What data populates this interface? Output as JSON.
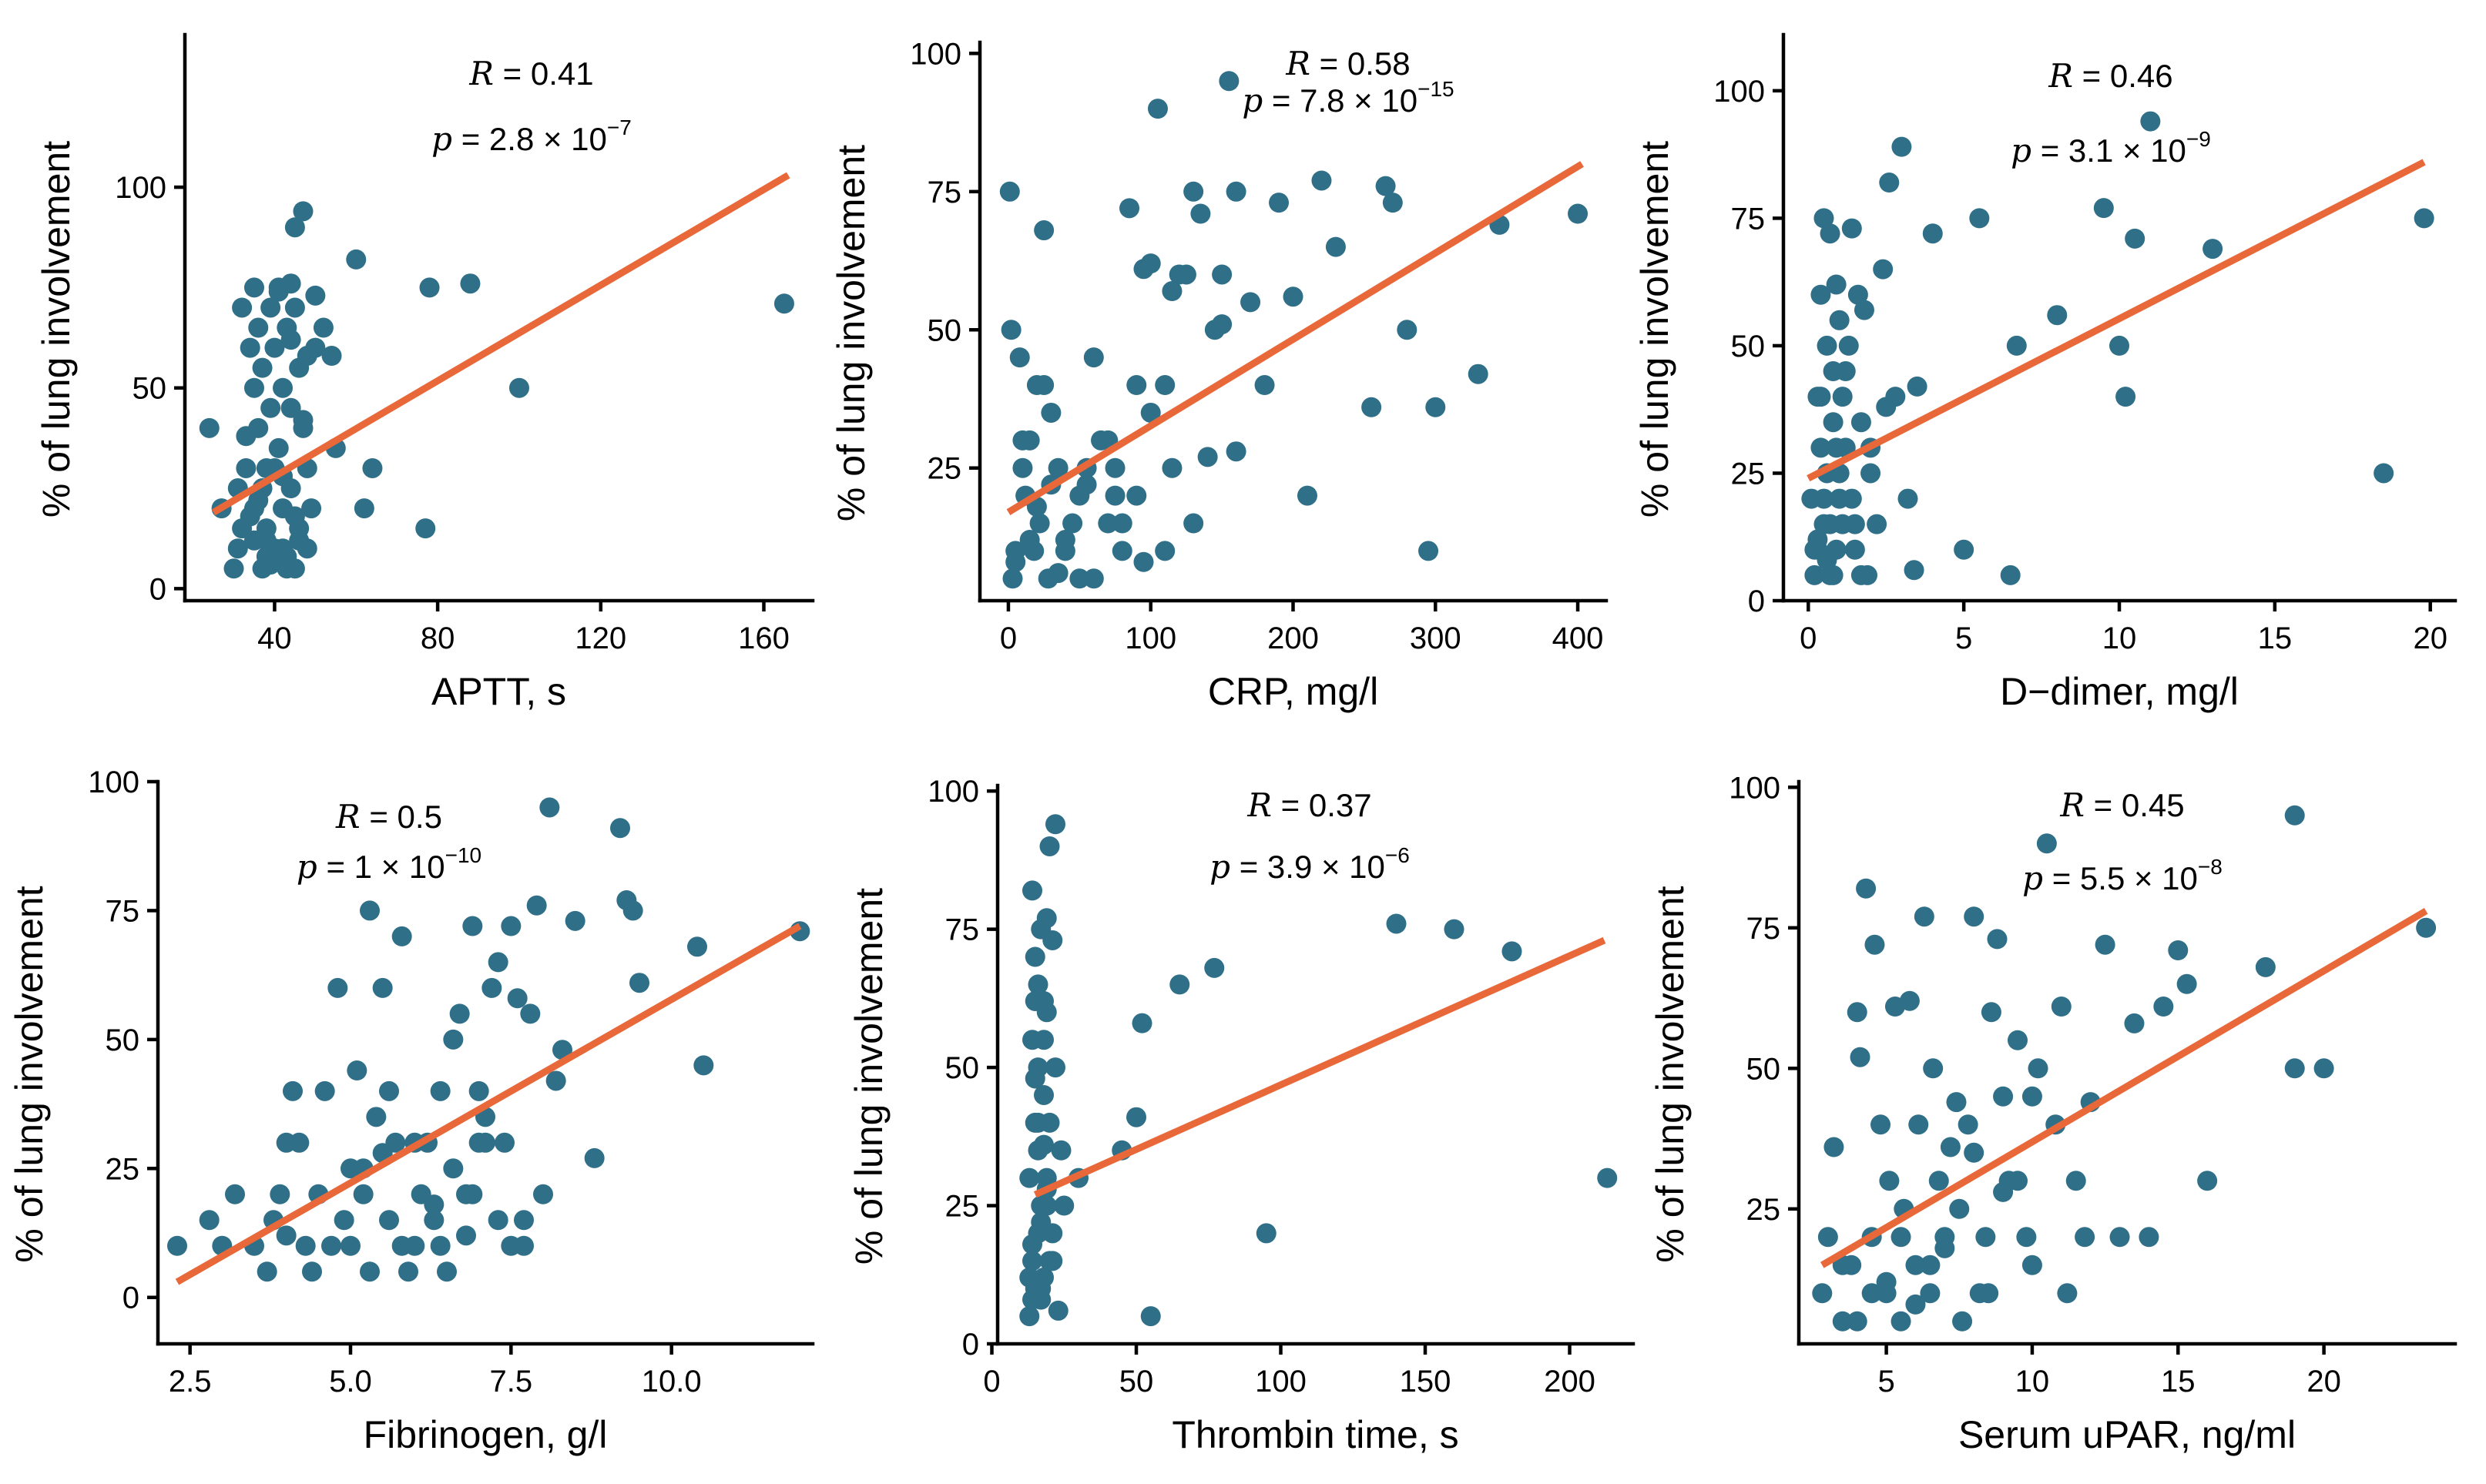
{
  "colors": {
    "point": "#2f6f88",
    "trend": "#e8683a",
    "axis": "#000000"
  },
  "chart_data": [
    {
      "type": "scatter",
      "xlabel": "APTT, s",
      "ylabel": "% of lung involvement",
      "xlim": [
        18,
        172
      ],
      "ylim": [
        -3,
        138
      ],
      "xticks": [
        40,
        80,
        120,
        160
      ],
      "yticks": [
        0,
        50,
        100
      ],
      "stat_r": {
        "symbol": "R",
        "text": " = 0.41"
      },
      "stat_p": {
        "symbol": "p",
        "text": " = 2.8 × 10",
        "exp": "−7"
      },
      "fit": {
        "x": [
          25,
          166
        ],
        "y": [
          19,
          103
        ]
      },
      "points": {
        "x": [
          24,
          27,
          30,
          31,
          32,
          33,
          34,
          35,
          35,
          36,
          36,
          37,
          37,
          38,
          38,
          39,
          39,
          40,
          40,
          41,
          41,
          42,
          42,
          43,
          43,
          44,
          44,
          45,
          45,
          46,
          46,
          47,
          47,
          48,
          48,
          49,
          50,
          52,
          55,
          60,
          62,
          64,
          77,
          78,
          88,
          100,
          165,
          32,
          35,
          38,
          42,
          45,
          50,
          54,
          36,
          41,
          44,
          47,
          33,
          39,
          46,
          43,
          40,
          37,
          34,
          31,
          44,
          48,
          42,
          45,
          38,
          35
        ],
        "y": [
          40,
          20,
          5,
          10,
          15,
          30,
          60,
          75,
          50,
          40,
          65,
          25,
          5,
          15,
          30,
          45,
          70,
          10,
          60,
          35,
          75,
          20,
          50,
          5,
          65,
          25,
          45,
          90,
          70,
          15,
          55,
          40,
          94,
          10,
          30,
          20,
          73,
          65,
          35,
          82,
          20,
          30,
          15,
          75,
          76,
          50,
          71,
          70,
          12,
          8,
          28,
          18,
          60,
          58,
          22,
          74,
          62,
          42,
          38,
          6,
          12,
          8,
          30,
          55,
          18,
          25,
          76,
          58,
          10,
          5,
          12,
          20
        ]
      }
    },
    {
      "type": "scatter",
      "xlabel": "CRP, mg/l",
      "ylabel": "% of lung involvement",
      "xlim": [
        -20,
        420
      ],
      "ylim": [
        1,
        102
      ],
      "xticks": [
        0,
        100,
        200,
        300,
        400
      ],
      "yticks": [
        25,
        50,
        75,
        100
      ],
      "stat_r": {
        "symbol": "R",
        "text": " = 0.58"
      },
      "stat_p": {
        "symbol": "p",
        "text": " = 7.8 × 10",
        "exp": "−15"
      },
      "fit": {
        "x": [
          0,
          403
        ],
        "y": [
          17,
          80
        ]
      },
      "points": {
        "x": [
          1,
          2,
          3,
          5,
          8,
          10,
          12,
          15,
          18,
          20,
          22,
          25,
          28,
          30,
          35,
          40,
          45,
          50,
          55,
          60,
          65,
          70,
          75,
          80,
          85,
          90,
          95,
          100,
          105,
          110,
          115,
          120,
          130,
          135,
          140,
          145,
          150,
          155,
          160,
          170,
          180,
          190,
          200,
          210,
          220,
          230,
          255,
          265,
          270,
          280,
          295,
          300,
          330,
          345,
          400,
          10,
          25,
          40,
          60,
          80,
          95,
          115,
          150,
          5,
          15,
          30,
          50,
          70,
          90,
          110,
          130,
          160,
          20,
          35,
          55,
          75,
          100,
          125
        ],
        "y": [
          75,
          50,
          5,
          10,
          45,
          25,
          20,
          30,
          10,
          40,
          15,
          68,
          5,
          35,
          25,
          10,
          15,
          20,
          25,
          45,
          30,
          15,
          20,
          10,
          72,
          40,
          61,
          62,
          90,
          40,
          57,
          60,
          75,
          71,
          27,
          50,
          60,
          95,
          75,
          55,
          40,
          73,
          56,
          20,
          77,
          65,
          36,
          76,
          73,
          50,
          10,
          36,
          42,
          69,
          71,
          30,
          40,
          12,
          5,
          15,
          8,
          25,
          51,
          8,
          12,
          22,
          5,
          30,
          20,
          10,
          15,
          28,
          18,
          6,
          22,
          25,
          35,
          60
        ]
      }
    },
    {
      "type": "scatter",
      "xlabel": "D−dimer, mg/l",
      "ylabel": "% of lung involvement",
      "xlim": [
        -0.8,
        20.8
      ],
      "ylim": [
        0,
        111
      ],
      "xticks": [
        0,
        5,
        10,
        15,
        20
      ],
      "yticks": [
        0,
        25,
        50,
        75,
        100
      ],
      "stat_r": {
        "symbol": "R",
        "text": " = 0.46"
      },
      "stat_p": {
        "symbol": "p",
        "text": " = 3.1 × 10",
        "exp": "−9"
      },
      "fit": {
        "x": [
          0,
          19.8
        ],
        "y": [
          24,
          86
        ]
      },
      "points": {
        "x": [
          0.1,
          0.2,
          0.3,
          0.3,
          0.4,
          0.4,
          0.5,
          0.5,
          0.6,
          0.6,
          0.7,
          0.7,
          0.8,
          0.8,
          0.9,
          0.9,
          1.0,
          1.0,
          1.1,
          1.2,
          1.3,
          1.4,
          1.5,
          1.6,
          1.7,
          1.8,
          1.9,
          2.0,
          2.2,
          2.4,
          2.6,
          2.8,
          3.0,
          3.2,
          3.4,
          3.5,
          4.0,
          5.0,
          5.5,
          6.5,
          6.7,
          8.0,
          9.5,
          10.0,
          10.2,
          10.5,
          11.0,
          13.0,
          18.5,
          19.8,
          0.2,
          0.5,
          0.8,
          1.2,
          1.5,
          2.0,
          0.3,
          0.6,
          0.9,
          1.1,
          1.4,
          1.7,
          0.4,
          0.7,
          1.0,
          2.5
        ],
        "y": [
          20,
          5,
          40,
          10,
          30,
          60,
          15,
          75,
          50,
          25,
          5,
          72,
          35,
          45,
          10,
          62,
          20,
          55,
          40,
          30,
          50,
          73,
          15,
          60,
          35,
          57,
          5,
          25,
          15,
          65,
          82,
          40,
          89,
          20,
          6,
          42,
          72,
          10,
          75,
          5,
          50,
          56,
          77,
          50,
          40,
          71,
          94,
          69,
          25,
          75,
          10,
          20,
          5,
          45,
          10,
          30,
          12,
          8,
          30,
          15,
          20,
          5,
          40,
          15,
          25,
          38
        ]
      }
    },
    {
      "type": "scatter",
      "xlabel": "Fibrinogen, g/l",
      "ylabel": "% of lung involvement",
      "xlim": [
        2.0,
        12.2
      ],
      "ylim": [
        -9,
        100
      ],
      "xticks": [
        2.5,
        5.0,
        7.5,
        10.0
      ],
      "yticks": [
        0,
        25,
        50,
        75,
        100
      ],
      "stat_r": {
        "symbol": "R",
        "text": " = 0.5"
      },
      "stat_p": {
        "symbol": "p",
        "text": " = 1 × 10",
        "exp": "−10"
      },
      "fit": {
        "x": [
          2.3,
          12.0
        ],
        "y": [
          3,
          72
        ]
      },
      "points": {
        "x": [
          2.3,
          2.8,
          3.0,
          3.2,
          3.5,
          3.7,
          3.8,
          4.0,
          4.1,
          4.3,
          4.5,
          4.6,
          4.8,
          4.9,
          5.0,
          5.1,
          5.2,
          5.3,
          5.4,
          5.5,
          5.6,
          5.7,
          5.8,
          5.9,
          6.0,
          6.1,
          6.2,
          6.3,
          6.4,
          6.5,
          6.6,
          6.7,
          6.8,
          6.9,
          7.0,
          7.1,
          7.2,
          7.3,
          7.4,
          7.5,
          7.6,
          7.7,
          7.8,
          7.9,
          8.0,
          8.1,
          8.2,
          8.3,
          8.5,
          8.8,
          9.2,
          9.3,
          9.4,
          9.5,
          10.4,
          10.5,
          12.0,
          3.9,
          4.2,
          4.7,
          5.0,
          5.3,
          5.6,
          6.0,
          6.4,
          6.9,
          7.3,
          7.7,
          4.4,
          5.8,
          6.6,
          7.1,
          4.0,
          5.2,
          6.3,
          7.0,
          7.5,
          5.5,
          6.8
        ],
        "y": [
          10,
          15,
          10,
          20,
          10,
          5,
          15,
          30,
          40,
          10,
          20,
          40,
          60,
          15,
          10,
          44,
          25,
          75,
          35,
          60,
          15,
          30,
          70,
          5,
          10,
          20,
          30,
          15,
          40,
          5,
          50,
          55,
          20,
          72,
          40,
          35,
          60,
          15,
          30,
          72,
          58,
          10,
          55,
          76,
          20,
          95,
          42,
          48,
          73,
          27,
          91,
          77,
          75,
          61,
          68,
          45,
          71,
          20,
          30,
          10,
          25,
          5,
          40,
          30,
          10,
          20,
          65,
          15,
          5,
          10,
          25,
          30,
          12,
          20,
          18,
          30,
          10,
          28,
          12
        ]
      }
    },
    {
      "type": "scatter",
      "xlabel": "Thrombin time, s",
      "ylabel": "% of lung involvement",
      "xlim": [
        2,
        222
      ],
      "ylim": [
        0,
        101
      ],
      "xticks": [
        0,
        50,
        100,
        150,
        200
      ],
      "yticks": [
        0,
        25,
        50,
        75,
        100
      ],
      "stat_r": {
        "symbol": "R",
        "text": " = 0.37"
      },
      "stat_p": {
        "symbol": "p",
        "text": " = 3.9 × 10",
        "exp": "−6"
      },
      "fit": {
        "x": [
          15,
          212
        ],
        "y": [
          27,
          73
        ]
      },
      "points": {
        "x": [
          13,
          13,
          14,
          14,
          14,
          15,
          15,
          15,
          16,
          16,
          16,
          17,
          17,
          17,
          18,
          18,
          18,
          19,
          19,
          19,
          20,
          20,
          21,
          21,
          22,
          22,
          23,
          24,
          25,
          30,
          45,
          50,
          52,
          55,
          65,
          77,
          95,
          140,
          160,
          180,
          213,
          14,
          15,
          16,
          17,
          18,
          19,
          20,
          13,
          15,
          17,
          19,
          21,
          14,
          16,
          18
        ],
        "y": [
          5,
          30,
          15,
          55,
          82,
          10,
          40,
          70,
          20,
          50,
          65,
          8,
          25,
          75,
          12,
          45,
          62,
          30,
          60,
          77,
          15,
          40,
          20,
          73,
          50,
          94,
          6,
          35,
          25,
          30,
          35,
          41,
          58,
          5,
          65,
          68,
          20,
          76,
          75,
          71,
          30,
          18,
          62,
          35,
          10,
          55,
          25,
          90,
          12,
          48,
          22,
          28,
          15,
          8,
          40,
          36
        ]
      }
    },
    {
      "type": "scatter",
      "xlabel": "Serum uPAR, ng/ml",
      "ylabel": "% of lung involvement",
      "xlim": [
        2,
        24.5
      ],
      "ylim": [
        1,
        101
      ],
      "xticks": [
        5,
        10,
        15,
        20
      ],
      "yticks": [
        25,
        50,
        75,
        100
      ],
      "stat_r": {
        "symbol": "R",
        "text": " = 0.45"
      },
      "stat_p": {
        "symbol": "p",
        "text": " = 5.5 × 10",
        "exp": "−8"
      },
      "fit": {
        "x": [
          2.8,
          23.5
        ],
        "y": [
          15,
          78
        ]
      },
      "points": {
        "x": [
          2.8,
          3.0,
          3.2,
          3.5,
          3.8,
          4.0,
          4.1,
          4.3,
          4.5,
          4.6,
          4.8,
          5.0,
          5.1,
          5.3,
          5.5,
          5.6,
          5.8,
          6.0,
          6.1,
          6.3,
          6.5,
          6.6,
          6.8,
          7.0,
          7.2,
          7.4,
          7.6,
          7.8,
          8.0,
          8.2,
          8.4,
          8.6,
          8.8,
          9.0,
          9.2,
          9.5,
          9.8,
          10.0,
          10.2,
          10.5,
          10.8,
          11.0,
          11.2,
          11.5,
          11.8,
          12.0,
          12.5,
          13.0,
          13.5,
          14.0,
          14.5,
          15.0,
          15.3,
          16.0,
          18.0,
          19.0,
          20.0,
          19.0,
          23.5,
          3.5,
          4.5,
          5.5,
          6.5,
          7.5,
          8.5,
          9.5,
          4.0,
          5.0,
          6.0,
          7.0,
          8.0,
          9.0,
          10.0
        ],
        "y": [
          10,
          20,
          36,
          5,
          15,
          60,
          52,
          82,
          20,
          72,
          40,
          10,
          30,
          61,
          5,
          25,
          62,
          15,
          40,
          77,
          10,
          50,
          30,
          20,
          36,
          44,
          5,
          40,
          77,
          10,
          20,
          60,
          73,
          45,
          30,
          55,
          20,
          15,
          50,
          90,
          40,
          61,
          10,
          30,
          20,
          44,
          72,
          20,
          58,
          20,
          61,
          71,
          65,
          30,
          68,
          50,
          50,
          95,
          75,
          15,
          10,
          20,
          15,
          25,
          10,
          30,
          5,
          12,
          8,
          18,
          35,
          28,
          45
        ]
      }
    }
  ]
}
